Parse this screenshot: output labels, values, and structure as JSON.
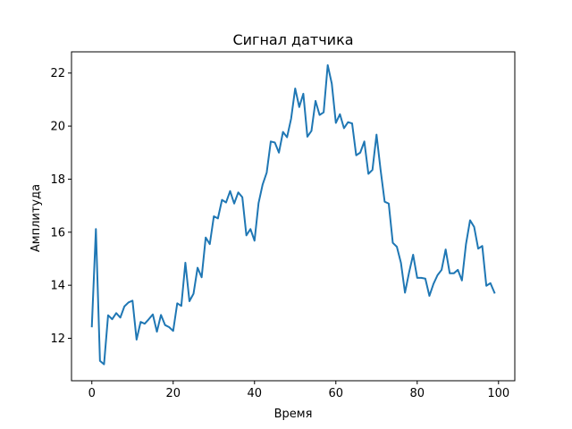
{
  "chart_data": {
    "type": "line",
    "title": "Сигнал датчика",
    "xlabel": "Время",
    "ylabel": "Амплитуда",
    "xlim": [
      -5,
      104
    ],
    "ylim": [
      10.4,
      22.8
    ],
    "xticks": [
      0,
      20,
      40,
      60,
      80,
      100
    ],
    "yticks": [
      12,
      14,
      16,
      18,
      20,
      22
    ],
    "xtick_labels": [
      "0",
      "20",
      "40",
      "60",
      "80",
      "100"
    ],
    "ytick_labels": [
      "12",
      "14",
      "16",
      "18",
      "20",
      "22"
    ],
    "grid": false,
    "legend": "none",
    "line_color": "#1f77b4",
    "series": [
      {
        "x": [
          0,
          1,
          2,
          3,
          4,
          5,
          6,
          7,
          8,
          9,
          10,
          11,
          12,
          13,
          14,
          15,
          16,
          17,
          18,
          19,
          20,
          21,
          22,
          23,
          24,
          25,
          26,
          27,
          28,
          29,
          30,
          31,
          32,
          33,
          34,
          35,
          36,
          37,
          38,
          39,
          40,
          41,
          42,
          43,
          44,
          45,
          46,
          47,
          48,
          49,
          50,
          51,
          52,
          53,
          54,
          55,
          56,
          57,
          58,
          59,
          60,
          61,
          62,
          63,
          64,
          65,
          66,
          67,
          68,
          69,
          70,
          71,
          72,
          73,
          74,
          75,
          76,
          77,
          78,
          79,
          80,
          81,
          82,
          83,
          84,
          85,
          86,
          87,
          88,
          89,
          90,
          91,
          92,
          93,
          94,
          95,
          96,
          97,
          98,
          99
        ],
        "values": [
          12.45,
          16.12,
          11.15,
          11.02,
          12.87,
          12.72,
          12.95,
          12.78,
          13.2,
          13.35,
          13.42,
          11.95,
          12.62,
          12.55,
          12.72,
          12.9,
          12.25,
          12.88,
          12.5,
          12.42,
          12.28,
          13.32,
          13.22,
          14.85,
          13.4,
          13.68,
          14.66,
          14.3,
          15.8,
          15.55,
          16.6,
          16.52,
          17.22,
          17.12,
          17.55,
          17.08,
          17.5,
          17.32,
          15.88,
          16.12,
          15.68,
          17.1,
          17.8,
          18.25,
          19.42,
          19.38,
          19.0,
          19.78,
          19.58,
          20.28,
          21.42,
          20.72,
          21.22,
          19.6,
          19.82,
          20.95,
          20.42,
          20.52,
          22.3,
          21.6,
          20.12,
          20.45,
          19.92,
          20.15,
          20.1,
          18.9,
          19.0,
          19.42,
          18.2,
          18.35,
          19.68,
          18.35,
          17.15,
          17.08,
          15.6,
          15.45,
          14.85,
          13.72,
          14.48,
          15.15,
          14.28,
          14.28,
          14.25,
          13.6,
          14.05,
          14.38,
          14.58,
          15.35,
          14.45,
          14.45,
          14.58,
          14.18,
          15.55,
          16.45,
          16.2,
          15.38,
          15.48,
          13.98,
          14.08,
          13.72
        ]
      }
    ]
  }
}
